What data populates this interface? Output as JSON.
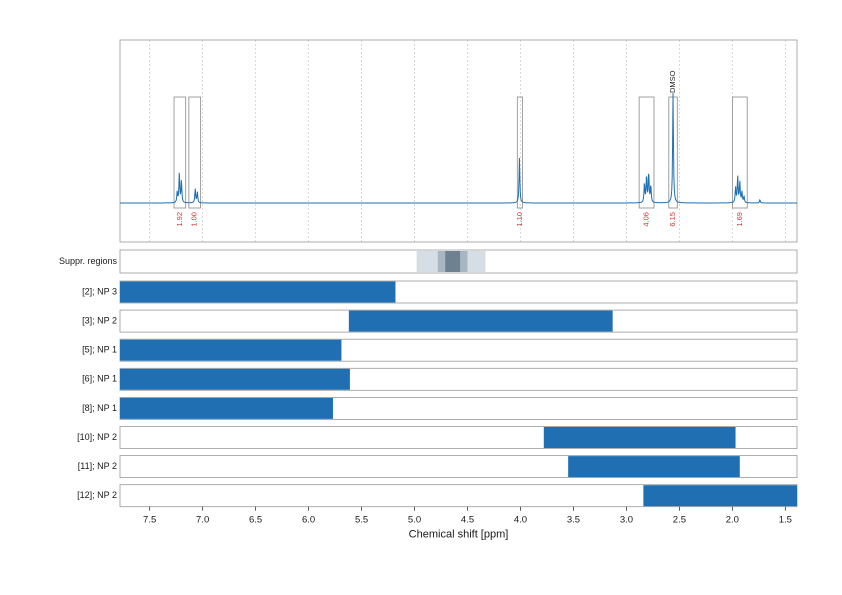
{
  "chart_data": {
    "type": "line",
    "xlabel": "Chemical shift [ppm]",
    "xlim": [
      7.78,
      1.39
    ],
    "x_reversed": true,
    "x_ticks": [
      "7.5",
      "7.0",
      "6.5",
      "6.0",
      "5.5",
      "5.0",
      "4.5",
      "4.0",
      "3.5",
      "3.0",
      "2.5",
      "2.0",
      "1.5"
    ],
    "grid": true,
    "spectrum": {
      "color": "#1f6fb2",
      "peaks": [
        {
          "center": 7.22,
          "height": 0.27
        },
        {
          "center": 7.2,
          "height": 0.2
        },
        {
          "center": 7.24,
          "height": 0.1
        },
        {
          "center": 7.07,
          "height": 0.13
        },
        {
          "center": 7.05,
          "height": 0.1
        },
        {
          "center": 4.01,
          "height": 0.41
        },
        {
          "center": 2.81,
          "height": 0.25
        },
        {
          "center": 2.79,
          "height": 0.28
        },
        {
          "center": 2.83,
          "height": 0.18
        },
        {
          "center": 2.77,
          "height": 0.16
        },
        {
          "center": 2.56,
          "height": 1.0
        },
        {
          "center": 1.95,
          "height": 0.24
        },
        {
          "center": 1.93,
          "height": 0.19
        },
        {
          "center": 1.97,
          "height": 0.14
        },
        {
          "center": 1.91,
          "height": 0.1
        },
        {
          "center": 1.89,
          "height": 0.06
        },
        {
          "center": 1.74,
          "height": 0.03
        }
      ]
    },
    "integration_regions": [
      {
        "from": 7.27,
        "to": 7.16,
        "label": "1.92",
        "color": "#e03030"
      },
      {
        "from": 7.13,
        "to": 7.02,
        "label": "1.00",
        "color": "#e03030"
      },
      {
        "from": 4.03,
        "to": 3.98,
        "label": "1.10",
        "color": "#e03030"
      },
      {
        "from": 2.88,
        "to": 2.74,
        "label": "4.06",
        "color": "#e03030"
      },
      {
        "from": 2.6,
        "to": 2.52,
        "label": "6.15",
        "color": "#e03030"
      },
      {
        "from": 2.0,
        "to": 1.86,
        "label": "1.69",
        "color": "#e03030"
      }
    ],
    "peak_annotations": [
      {
        "x": 2.56,
        "text": "DMSO"
      }
    ],
    "suppression": {
      "label": "Suppr. regions",
      "bands": [
        {
          "from": 4.98,
          "to": 4.33,
          "color": "#d5dde5"
        },
        {
          "from": 4.78,
          "to": 4.5,
          "color": "#a8b6c3"
        },
        {
          "from": 4.71,
          "to": 4.57,
          "color": "#6e8190"
        }
      ]
    },
    "rows": [
      {
        "label": "[2]; NP 3",
        "from": 7.78,
        "to": 5.18
      },
      {
        "label": "[3]; NP 2",
        "from": 5.62,
        "to": 3.13
      },
      {
        "label": "[5]; NP 1",
        "from": 7.78,
        "to": 5.69
      },
      {
        "label": "[6]; NP 1",
        "from": 7.78,
        "to": 5.61
      },
      {
        "label": "[8]; NP 1",
        "from": 7.78,
        "to": 5.77
      },
      {
        "label": "[10]; NP 2",
        "from": 3.78,
        "to": 1.97
      },
      {
        "label": "[11]; NP 2",
        "from": 3.55,
        "to": 1.93
      },
      {
        "label": "[12]; NP 2",
        "from": 2.84,
        "to": 1.39
      }
    ],
    "bar_color": "#1f6fb2"
  }
}
